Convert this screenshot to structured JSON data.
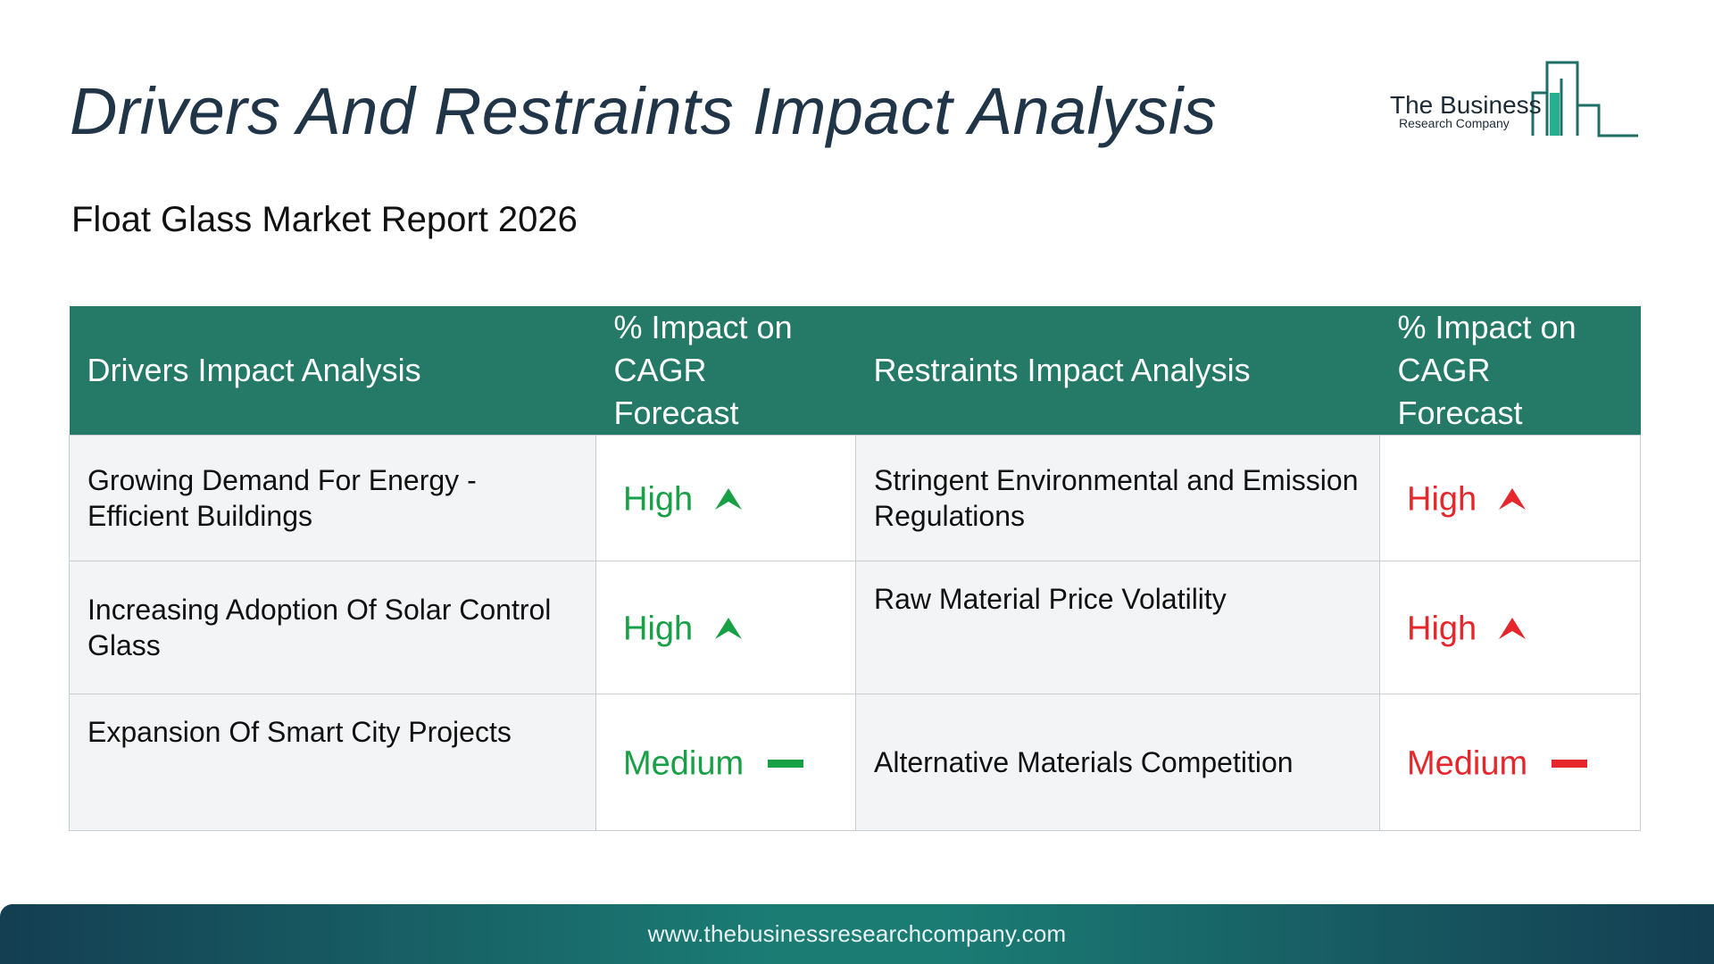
{
  "title": "Drivers And Restraints Impact Analysis",
  "subtitle": "Float Glass Market Report 2026",
  "logo": {
    "name": "The Business",
    "sub": "Research Company"
  },
  "table": {
    "headers": {
      "drivers": "Drivers Impact Analysis",
      "drivers_impact": "% Impact on CAGR Forecast",
      "restraints": "Restraints Impact Analysis",
      "restraints_impact": "% Impact on CAGR Forecast"
    },
    "rows": [
      {
        "driver": "Growing Demand For Energy - Efficient Buildings",
        "driver_impact": "High",
        "driver_icon": "arrow-up-icon",
        "restraint": "Stringent Environmental and Emission Regulations",
        "restraint_impact": "High",
        "restraint_icon": "arrow-up-icon"
      },
      {
        "driver": "Increasing Adoption Of Solar Control Glass",
        "driver_impact": "High",
        "driver_icon": "arrow-up-icon",
        "restraint": "Raw Material Price Volatility",
        "restraint_impact": "High",
        "restraint_icon": "arrow-up-icon"
      },
      {
        "driver": "Expansion Of Smart City Projects",
        "driver_impact": "Medium",
        "driver_icon": "dash-icon",
        "restraint": "Alternative Materials Competition",
        "restraint_impact": "Medium",
        "restraint_icon": "dash-icon"
      }
    ]
  },
  "colors": {
    "header_bg": "#247a67",
    "driver_color": "#17a045",
    "restraint_color": "#e5262b",
    "title_color": "#213548"
  },
  "footer": {
    "url": "www.thebusinessresearchcompany.com"
  }
}
